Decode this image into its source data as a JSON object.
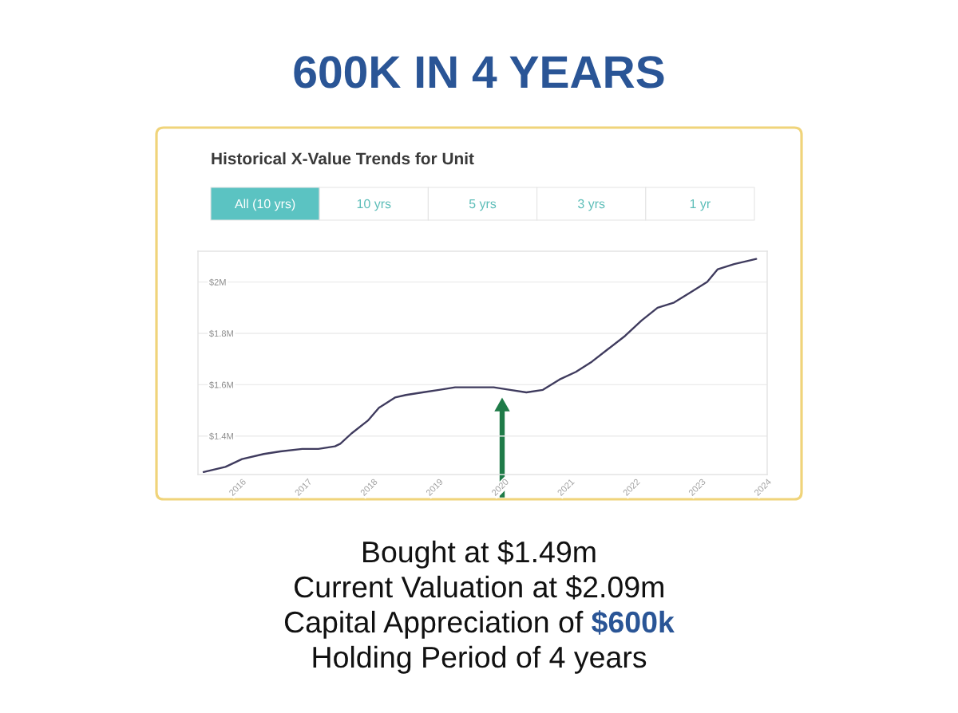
{
  "chart_data": {
    "type": "line",
    "title": "600K IN 4 YEARS",
    "subtitle": "Historical X-Value Trends for Unit",
    "x": [
      "2015-06",
      "2015-08",
      "2015-10",
      "2016-01",
      "2016-05",
      "2016-08",
      "2016-12",
      "2017-03",
      "2017-06",
      "2017-07",
      "2017-09",
      "2017-12",
      "2018-02",
      "2018-05",
      "2018-07",
      "2018-10",
      "2019-01",
      "2019-04",
      "2019-08",
      "2019-11",
      "2020-02",
      "2020-05",
      "2020-08",
      "2020-11",
      "2021-02",
      "2021-05",
      "2021-08",
      "2021-11",
      "2022-02",
      "2022-05",
      "2022-08",
      "2022-11",
      "2023-02",
      "2023-04",
      "2023-07",
      "2023-09",
      "2023-11"
    ],
    "series": [
      {
        "color": "#3f3b5e",
        "values": [
          1.26,
          1.27,
          1.28,
          1.31,
          1.33,
          1.34,
          1.35,
          1.35,
          1.36,
          1.37,
          1.41,
          1.46,
          1.51,
          1.55,
          1.56,
          1.57,
          1.58,
          1.59,
          1.59,
          1.59,
          1.58,
          1.57,
          1.58,
          1.62,
          1.65,
          1.69,
          1.74,
          1.79,
          1.85,
          1.9,
          1.92,
          1.96,
          2.0,
          2.05,
          2.07,
          2.08,
          2.09
        ]
      }
    ],
    "xlim": [
      "2015-05",
      "2024-01"
    ],
    "xticks": [
      "2016",
      "2017",
      "2018",
      "2019",
      "2020",
      "2021",
      "2022",
      "2023",
      "2024"
    ],
    "ylim": [
      1.25,
      2.12
    ],
    "yticks": [
      {
        "value": 1.4,
        "label": "$1.4M"
      },
      {
        "value": 1.6,
        "label": "$1.6M"
      },
      {
        "value": 1.8,
        "label": "$1.8M"
      },
      {
        "value": 2.0,
        "label": "$2M"
      }
    ],
    "grid": "y",
    "annotations": [
      "All (10 yrs)",
      "10 yrs",
      "5 yrs",
      "3 yrs",
      "1 yr",
      "Bought at $1.49m",
      "Current Valuation at $2.09m",
      "Capital Appreciation of",
      "$600k",
      "Holding Period of 4 years"
    ]
  }
}
